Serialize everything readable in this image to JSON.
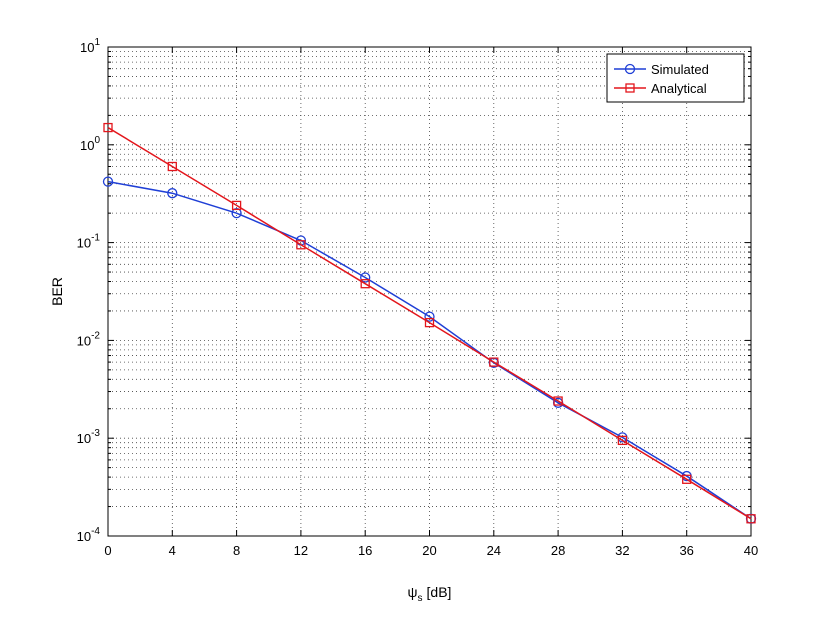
{
  "chart_data": {
    "type": "line",
    "title": "",
    "xlabel": "ψ_s [dB]",
    "xlabel_main": "ψ",
    "xlabel_sub": "s",
    "xlabel_unit": "[dB]",
    "ylabel": "BER",
    "x": [
      0,
      4,
      8,
      12,
      16,
      20,
      24,
      28,
      32,
      36,
      40
    ],
    "xlim": [
      0,
      40
    ],
    "ylim": [
      0.0001,
      10
    ],
    "yscale": "log",
    "x_ticks": [
      "0",
      "4",
      "8",
      "12",
      "16",
      "20",
      "24",
      "28",
      "32",
      "36",
      "40"
    ],
    "y_ticks": [
      {
        "base": "10",
        "exp": "-4"
      },
      {
        "base": "10",
        "exp": "-3"
      },
      {
        "base": "10",
        "exp": "-2"
      },
      {
        "base": "10",
        "exp": "-1"
      },
      {
        "base": "10",
        "exp": "0"
      },
      {
        "base": "10",
        "exp": "1"
      }
    ],
    "grid": true,
    "legend_position": "top-right",
    "series": [
      {
        "name": "Simulated",
        "color": "#1f3fd6",
        "marker": "circle",
        "values": [
          0.42,
          0.32,
          0.2,
          0.105,
          0.044,
          0.0175,
          0.0059,
          0.0023,
          0.00102,
          0.00041,
          0.00015
        ]
      },
      {
        "name": "Analytical",
        "color": "#e3161c",
        "marker": "square",
        "values": [
          1.5,
          0.6,
          0.24,
          0.095,
          0.038,
          0.0152,
          0.006,
          0.0024,
          0.00095,
          0.00038,
          0.00015
        ]
      }
    ]
  }
}
